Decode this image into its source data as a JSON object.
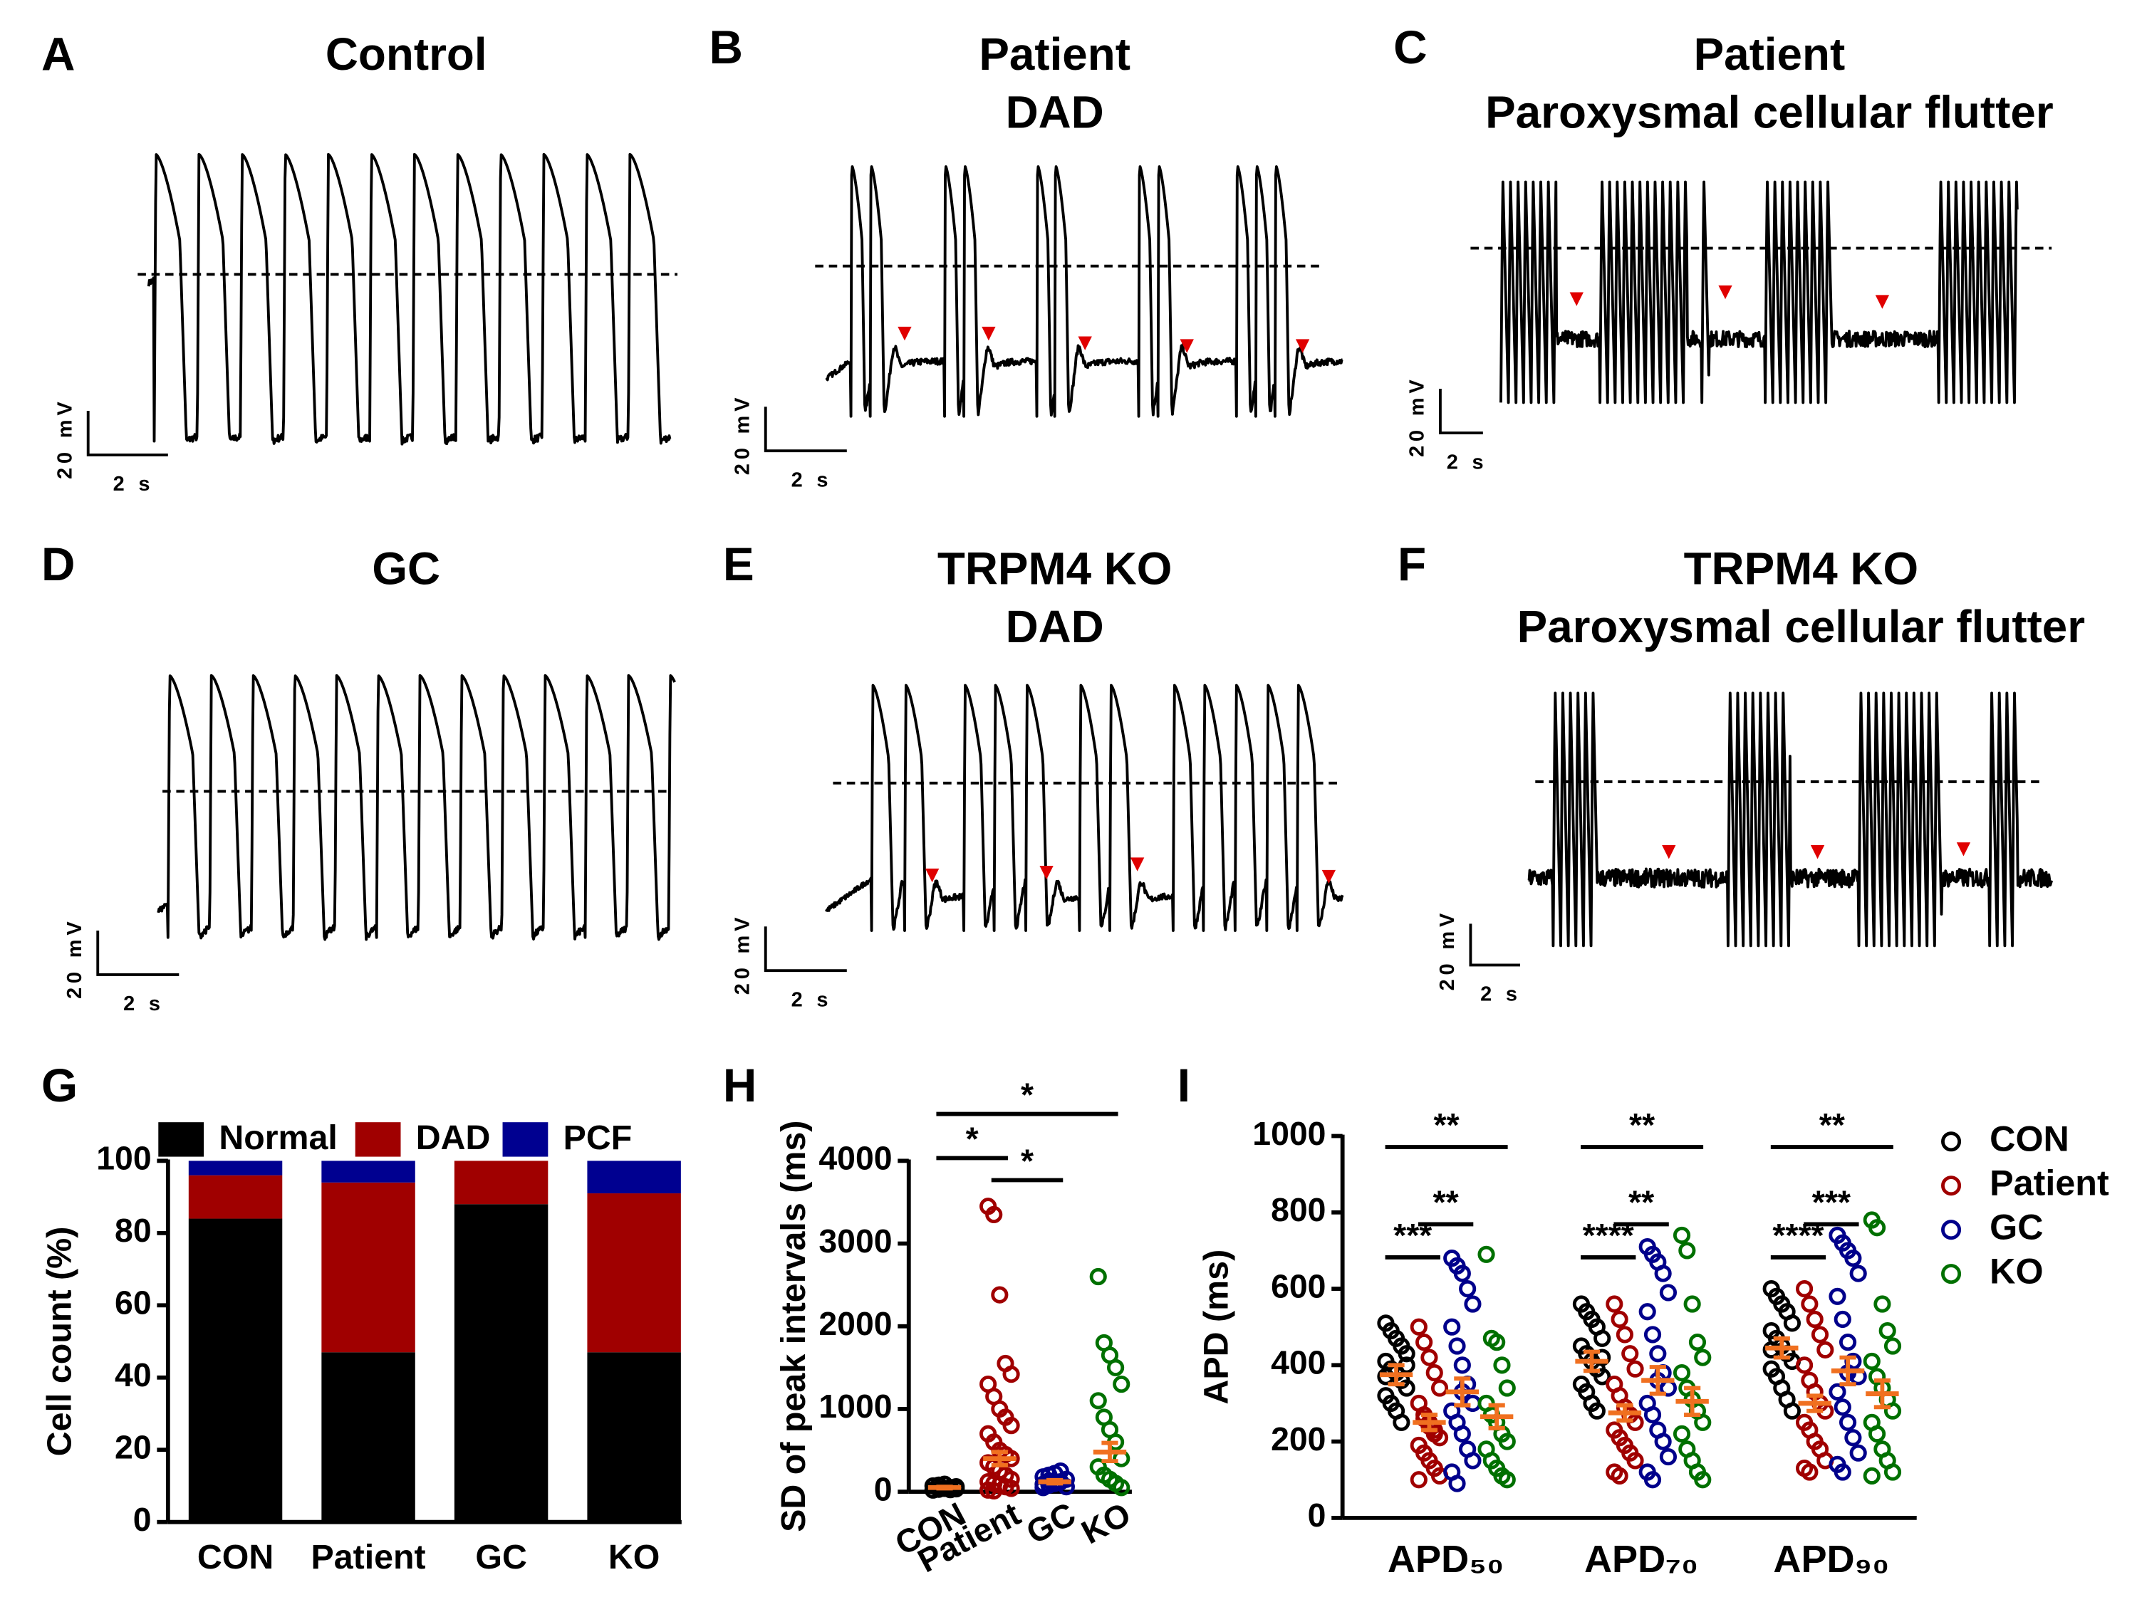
{
  "trace_panels": [
    {
      "letter": "A",
      "title": [
        "Control"
      ],
      "scale_y": "20 mV",
      "scale_x": "2 s"
    },
    {
      "letter": "B",
      "title": [
        "Patient",
        "DAD"
      ],
      "scale_y": "20 mV",
      "scale_x": "2 s"
    },
    {
      "letter": "C",
      "title": [
        "Patient",
        "Paroxysmal cellular flutter"
      ],
      "scale_y": "20 mV",
      "scale_x": "2 s"
    },
    {
      "letter": "D",
      "title": [
        "GC"
      ],
      "scale_y": "20 mV",
      "scale_x": "2 s"
    },
    {
      "letter": "E",
      "title": [
        "TRPM4 KO",
        "DAD"
      ],
      "scale_y": "20 mV",
      "scale_x": "2 s"
    },
    {
      "letter": "F",
      "title": [
        "TRPM4 KO",
        "Paroxysmal cellular flutter"
      ],
      "scale_y": "20 mV",
      "scale_x": "2 s"
    }
  ],
  "chart_data": [
    {
      "type": "stacked_bar",
      "panel_label": "G",
      "y_label": "Cell count (%)",
      "categories": [
        "CON",
        "Patient",
        "GC",
        "KO"
      ],
      "series": [
        {
          "name": "Normal",
          "color": "#000000",
          "values": [
            84,
            47,
            88,
            47
          ]
        },
        {
          "name": "DAD",
          "color": "#a00000",
          "values": [
            12,
            47,
            12,
            44
          ]
        },
        {
          "name": "PCF",
          "color": "#000090",
          "values": [
            4,
            6,
            0,
            9
          ]
        }
      ],
      "ylim": [
        0,
        100
      ],
      "yticks": [
        0,
        20,
        40,
        60,
        80,
        100
      ]
    },
    {
      "type": "strip",
      "panel_label": "H",
      "y_label": "SD of peak intervals (ms)",
      "categories": [
        "CON",
        "Patient",
        "GC",
        "KO"
      ],
      "colors": [
        "#000000",
        "#a00000",
        "#00008b",
        "#007000"
      ],
      "mean_color": "#f07020",
      "values": [
        [
          20,
          30,
          40,
          50,
          60,
          70,
          80,
          90,
          25,
          35
        ],
        [
          3450,
          3350,
          2380,
          1550,
          1420,
          1300,
          1150,
          1000,
          900,
          800,
          700,
          600,
          500,
          450,
          400,
          350,
          300,
          250,
          200,
          150,
          120,
          100,
          80,
          60,
          40,
          20,
          10
        ],
        [
          50,
          80,
          100,
          120,
          150,
          180,
          200,
          220,
          250,
          60,
          90,
          130
        ],
        [
          2600,
          1800,
          1650,
          1500,
          1300,
          1100,
          900,
          750,
          600,
          400,
          300,
          200,
          150,
          100,
          50
        ]
      ],
      "mean": [
        50,
        400,
        120,
        480
      ],
      "sem": [
        10,
        80,
        20,
        110
      ],
      "annotations": [
        {
          "text": "*",
          "between": [
            0,
            3
          ]
        },
        {
          "text": "*",
          "between": [
            0,
            1
          ]
        },
        {
          "text": "*",
          "between": [
            1,
            2
          ]
        }
      ],
      "ylim": [
        0,
        4000
      ],
      "yticks": [
        0,
        1000,
        2000,
        3000,
        4000
      ]
    },
    {
      "type": "grouped_strip",
      "panel_label": "I",
      "y_label": "APD (ms)",
      "categories": [
        "APD₅₀",
        "APD₇₀",
        "APD₉₀"
      ],
      "mean_color": "#f07020",
      "series": [
        {
          "name": "CON",
          "color": "#000000",
          "values": [
            [
              510,
              490,
              470,
              450,
              430,
              410,
              390,
              380,
              360,
              340,
              320,
              300,
              280,
              250,
              400,
              370
            ],
            [
              560,
              540,
              520,
              500,
              470,
              450,
              430,
              410,
              390,
              370,
              350,
              330,
              300,
              280,
              420
            ],
            [
              600,
              580,
              560,
              540,
              510,
              490,
              470,
              450,
              430,
              410,
              390,
              370,
              340,
              310,
              280,
              440
            ]
          ],
          "mean": [
            375,
            410,
            445
          ],
          "sem": [
            25,
            25,
            25
          ]
        },
        {
          "name": "Patient",
          "color": "#a00000",
          "values": [
            [
              500,
              460,
              420,
              380,
              340,
              300,
              270,
              250,
              230,
              210,
              190,
              170,
              150,
              130,
              110,
              100,
              260,
              240,
              220
            ],
            [
              560,
              520,
              480,
              430,
              390,
              350,
              320,
              290,
              270,
              250,
              230,
              210,
              190,
              170,
              150,
              120,
              110
            ],
            [
              600,
              560,
              520,
              480,
              440,
              400,
              360,
              330,
              300,
              280,
              250,
              230,
              200,
              180,
              150,
              130,
              120
            ]
          ],
          "mean": [
            250,
            275,
            300
          ],
          "sem": [
            20,
            20,
            20
          ]
        },
        {
          "name": "GC",
          "color": "#00008b",
          "values": [
            [
              680,
              660,
              640,
              600,
              560,
              500,
              450,
              400,
              350,
              300,
              280,
              250,
              220,
              180,
              150,
              120,
              90,
              330
            ],
            [
              710,
              690,
              670,
              640,
              590,
              540,
              480,
              430,
              380,
              340,
              300,
              270,
              230,
              200,
              160,
              120,
              100,
              360
            ],
            [
              740,
              720,
              700,
              680,
              640,
              580,
              520,
              460,
              410,
              370,
              330,
              290,
              250,
              210,
              170,
              140,
              120,
              380
            ]
          ],
          "mean": [
            330,
            360,
            385
          ],
          "sem": [
            35,
            35,
            35
          ]
        },
        {
          "name": "KO",
          "color": "#007000",
          "values": [
            [
              690,
              470,
              460,
              400,
              340,
              300,
              270,
              250,
              220,
              200,
              180,
              150,
              130,
              110,
              100
            ],
            [
              740,
              700,
              560,
              460,
              420,
              380,
              340,
              310,
              280,
              250,
              220,
              180,
              150,
              120,
              100
            ],
            [
              780,
              760,
              560,
              490,
              450,
              410,
              370,
              340,
              310,
              280,
              250,
              220,
              180,
              150,
              120,
              110
            ]
          ],
          "mean": [
            265,
            305,
            325
          ],
          "sem": [
            30,
            35,
            35
          ]
        }
      ],
      "annotations": [
        {
          "category": 0,
          "text": "**",
          "between": [
            0,
            3
          ]
        },
        {
          "category": 0,
          "text": "***",
          "between": [
            0,
            1
          ]
        },
        {
          "category": 0,
          "text": "**",
          "between": [
            1,
            2
          ]
        },
        {
          "category": 1,
          "text": "**",
          "between": [
            0,
            3
          ]
        },
        {
          "category": 1,
          "text": "****",
          "between": [
            0,
            1
          ]
        },
        {
          "category": 1,
          "text": "**",
          "between": [
            1,
            2
          ]
        },
        {
          "category": 2,
          "text": "**",
          "between": [
            0,
            3
          ]
        },
        {
          "category": 2,
          "text": "****",
          "between": [
            0,
            1
          ]
        },
        {
          "category": 2,
          "text": "***",
          "between": [
            1,
            2
          ]
        }
      ],
      "ylim": [
        0,
        1000
      ],
      "yticks": [
        0,
        200,
        400,
        600,
        800,
        1000
      ]
    }
  ]
}
